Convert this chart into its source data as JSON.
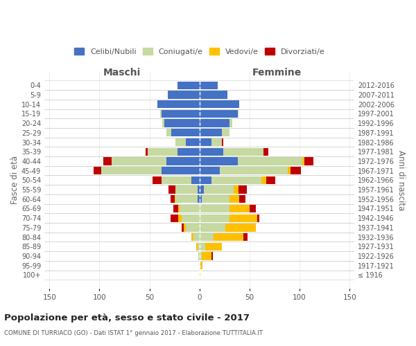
{
  "age_groups": [
    "0-4",
    "5-9",
    "10-14",
    "15-19",
    "20-24",
    "25-29",
    "30-34",
    "35-39",
    "40-44",
    "45-49",
    "50-54",
    "55-59",
    "60-64",
    "65-69",
    "70-74",
    "75-79",
    "80-84",
    "85-89",
    "90-94",
    "95-99",
    "100+"
  ],
  "birth_years": [
    "2012-2016",
    "2007-2011",
    "2002-2006",
    "1997-2001",
    "1992-1996",
    "1987-1991",
    "1982-1986",
    "1977-1981",
    "1972-1976",
    "1967-1971",
    "1962-1966",
    "1957-1961",
    "1952-1956",
    "1947-1951",
    "1942-1946",
    "1937-1941",
    "1932-1936",
    "1927-1931",
    "1922-1926",
    "1917-1921",
    "≤ 1916"
  ],
  "male_celibi": [
    22,
    32,
    42,
    38,
    35,
    28,
    14,
    22,
    33,
    38,
    8,
    2,
    2,
    0,
    0,
    0,
    0,
    0,
    0,
    0,
    0
  ],
  "male_coniugati": [
    0,
    0,
    0,
    1,
    2,
    5,
    10,
    30,
    55,
    60,
    30,
    22,
    22,
    20,
    18,
    14,
    6,
    2,
    1,
    0,
    0
  ],
  "male_vedovi": [
    0,
    0,
    0,
    0,
    0,
    0,
    0,
    0,
    0,
    0,
    0,
    0,
    1,
    1,
    3,
    2,
    2,
    1,
    0,
    0,
    0
  ],
  "male_divorziati": [
    0,
    0,
    0,
    0,
    0,
    0,
    0,
    2,
    8,
    8,
    9,
    7,
    4,
    5,
    8,
    2,
    0,
    0,
    0,
    0,
    0
  ],
  "female_celibi": [
    18,
    28,
    40,
    38,
    30,
    22,
    12,
    24,
    38,
    20,
    12,
    4,
    2,
    0,
    0,
    0,
    0,
    0,
    0,
    0,
    0
  ],
  "female_coniugati": [
    0,
    0,
    0,
    1,
    3,
    8,
    10,
    40,
    65,
    68,
    50,
    30,
    28,
    30,
    30,
    26,
    14,
    6,
    2,
    1,
    0
  ],
  "female_vedovi": [
    0,
    0,
    0,
    0,
    0,
    0,
    0,
    0,
    2,
    3,
    5,
    5,
    10,
    20,
    28,
    30,
    30,
    16,
    10,
    2,
    1
  ],
  "female_divorziati": [
    0,
    0,
    0,
    0,
    0,
    0,
    2,
    5,
    9,
    10,
    9,
    8,
    6,
    6,
    2,
    0,
    4,
    0,
    1,
    0,
    0
  ],
  "colors": {
    "celibi": "#4472c4",
    "coniugati": "#c5d9a0",
    "vedovi": "#ffc000",
    "divorziati": "#c00000"
  },
  "title": "Popolazione per età, sesso e stato civile - 2017",
  "subtitle": "COMUNE DI TURRIACO (GO) - Dati ISTAT 1° gennaio 2017 - Elaborazione TUTTITALIA.IT",
  "xlabel_left": "Maschi",
  "xlabel_right": "Femmine",
  "ylabel_left": "Fasce di età",
  "ylabel_right": "Anni di nascita",
  "xlim": 155,
  "legend_labels": [
    "Celibi/Nubili",
    "Coniugati/e",
    "Vedovi/e",
    "Divorziati/e"
  ],
  "bg_color": "#ffffff",
  "grid_color": "#cccccc"
}
